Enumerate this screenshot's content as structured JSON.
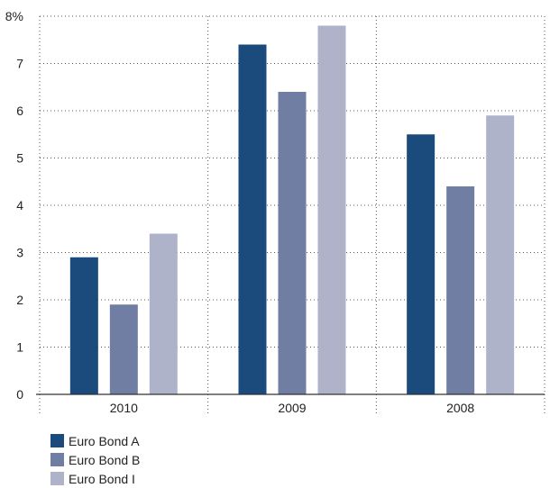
{
  "chart_data": {
    "type": "bar",
    "categories": [
      "2010",
      "2009",
      "2008"
    ],
    "series": [
      {
        "name": "Euro Bond A",
        "values": [
          2.9,
          7.4,
          5.5
        ],
        "color": "#1b4a7c"
      },
      {
        "name": "Euro Bond B",
        "values": [
          1.9,
          6.4,
          4.4
        ],
        "color": "#717ea3"
      },
      {
        "name": "Euro Bond I",
        "values": [
          3.4,
          7.8,
          5.9
        ],
        "color": "#afb3c9"
      }
    ],
    "y_ticks": [
      "0",
      "1",
      "2",
      "3",
      "4",
      "5",
      "6",
      "7",
      "8%"
    ],
    "ylim": [
      0,
      8
    ],
    "grid": "dotted horizontal and vertical",
    "legend_position": "bottom-left",
    "title": "",
    "xlabel": "",
    "ylabel": ""
  }
}
